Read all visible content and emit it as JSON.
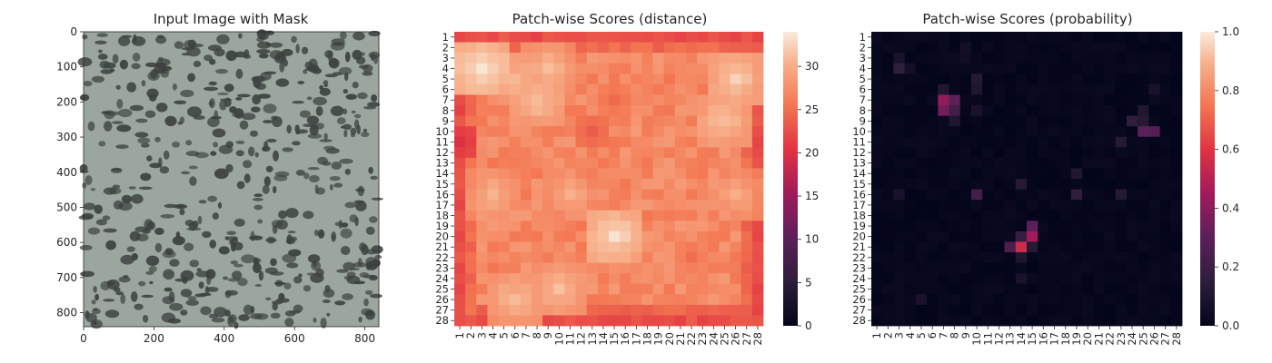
{
  "panels": {
    "image": {
      "title": "Input Image with Mask",
      "x_ticks": [
        "0",
        "200",
        "400",
        "600",
        "800"
      ],
      "y_ticks": [
        "0",
        "100",
        "200",
        "300",
        "400",
        "500",
        "600",
        "700",
        "800"
      ],
      "x_range": [
        0,
        840
      ],
      "y_range": [
        0,
        840
      ],
      "colors": {
        "background": "#9aa69e",
        "spots": "#3d4240"
      }
    }
  },
  "chart_data": [
    {
      "type": "heatmap",
      "title": "Patch-wise Scores (distance)",
      "rows": 28,
      "cols": 28,
      "x_tick_labels": [
        "1",
        "2",
        "3",
        "4",
        "5",
        "6",
        "7",
        "8",
        "9",
        "10",
        "11",
        "12",
        "13",
        "14",
        "15",
        "16",
        "17",
        "18",
        "19",
        "20",
        "21",
        "22",
        "23",
        "24",
        "25",
        "26",
        "27",
        "28"
      ],
      "y_tick_labels": [
        "1",
        "2",
        "3",
        "4",
        "5",
        "6",
        "7",
        "8",
        "9",
        "10",
        "11",
        "12",
        "13",
        "14",
        "15",
        "16",
        "17",
        "18",
        "19",
        "20",
        "21",
        "22",
        "23",
        "24",
        "25",
        "26",
        "27",
        "28"
      ],
      "colorbar": {
        "range": [
          0,
          34
        ],
        "ticks": [
          "0",
          "5",
          "10",
          "15",
          "20",
          "25",
          "30"
        ]
      },
      "base_value": 27,
      "border_value": 22.5,
      "bright_spots": [
        {
          "row": 4,
          "col": 3,
          "value": 33.5
        },
        {
          "row": 5,
          "col": 6,
          "value": 31
        },
        {
          "row": 4,
          "col": 9,
          "value": 31
        },
        {
          "row": 7,
          "col": 8,
          "value": 31.5
        },
        {
          "row": 5,
          "col": 26,
          "value": 32
        },
        {
          "row": 9,
          "col": 25,
          "value": 31.5
        },
        {
          "row": 16,
          "col": 4,
          "value": 30.5
        },
        {
          "row": 16,
          "col": 11,
          "value": 30
        },
        {
          "row": 20,
          "col": 15,
          "value": 33
        },
        {
          "row": 25,
          "col": 10,
          "value": 31
        },
        {
          "row": 26,
          "col": 6,
          "value": 31
        },
        {
          "row": 16,
          "col": 26,
          "value": 30
        }
      ],
      "dark_spots": [
        {
          "row": 11,
          "col": 1,
          "value": 20
        },
        {
          "row": 10,
          "col": 13,
          "value": 23.5
        },
        {
          "row": 7,
          "col": 15,
          "value": 24.5
        },
        {
          "row": 22,
          "col": 22,
          "value": 25
        }
      ]
    },
    {
      "type": "heatmap",
      "title": "Patch-wise Scores (probability)",
      "rows": 28,
      "cols": 28,
      "x_tick_labels": [
        "1",
        "2",
        "3",
        "4",
        "5",
        "6",
        "7",
        "8",
        "9",
        "10",
        "11",
        "12",
        "13",
        "14",
        "15",
        "16",
        "17",
        "18",
        "19",
        "20",
        "21",
        "22",
        "23",
        "24",
        "25",
        "26",
        "27",
        "28"
      ],
      "y_tick_labels": [
        "1",
        "2",
        "3",
        "4",
        "5",
        "6",
        "7",
        "8",
        "9",
        "10",
        "11",
        "12",
        "13",
        "14",
        "15",
        "16",
        "17",
        "18",
        "19",
        "20",
        "21",
        "22",
        "23",
        "24",
        "25",
        "26",
        "27",
        "28"
      ],
      "colorbar": {
        "range": [
          0,
          1.0
        ],
        "ticks": [
          "0.0",
          "0.2",
          "0.4",
          "0.6",
          "0.8",
          "1.0"
        ]
      },
      "base_value": 0,
      "cells": [
        {
          "row": 4,
          "col": 3,
          "value": 0.15
        },
        {
          "row": 3,
          "col": 3,
          "value": 0.08
        },
        {
          "row": 4,
          "col": 4,
          "value": 0.06
        },
        {
          "row": 7,
          "col": 7,
          "value": 0.42
        },
        {
          "row": 7,
          "col": 8,
          "value": 0.3
        },
        {
          "row": 8,
          "col": 7,
          "value": 0.35
        },
        {
          "row": 8,
          "col": 8,
          "value": 0.22
        },
        {
          "row": 6,
          "col": 7,
          "value": 0.1
        },
        {
          "row": 9,
          "col": 8,
          "value": 0.1
        },
        {
          "row": 5,
          "col": 10,
          "value": 0.12
        },
        {
          "row": 6,
          "col": 10,
          "value": 0.1
        },
        {
          "row": 8,
          "col": 10,
          "value": 0.08
        },
        {
          "row": 2,
          "col": 9,
          "value": 0.06
        },
        {
          "row": 3,
          "col": 9,
          "value": 0.05
        },
        {
          "row": 10,
          "col": 25,
          "value": 0.3
        },
        {
          "row": 10,
          "col": 26,
          "value": 0.28
        },
        {
          "row": 9,
          "col": 24,
          "value": 0.15
        },
        {
          "row": 9,
          "col": 25,
          "value": 0.12
        },
        {
          "row": 11,
          "col": 23,
          "value": 0.12
        },
        {
          "row": 8,
          "col": 25,
          "value": 0.1
        },
        {
          "row": 6,
          "col": 26,
          "value": 0.08
        },
        {
          "row": 16,
          "col": 10,
          "value": 0.22
        },
        {
          "row": 15,
          "col": 14,
          "value": 0.12
        },
        {
          "row": 16,
          "col": 19,
          "value": 0.15
        },
        {
          "row": 14,
          "col": 19,
          "value": 0.1
        },
        {
          "row": 16,
          "col": 23,
          "value": 0.12
        },
        {
          "row": 20,
          "col": 15,
          "value": 0.45
        },
        {
          "row": 19,
          "col": 15,
          "value": 0.3
        },
        {
          "row": 21,
          "col": 14,
          "value": 0.55
        },
        {
          "row": 21,
          "col": 13,
          "value": 0.25
        },
        {
          "row": 20,
          "col": 14,
          "value": 0.18
        },
        {
          "row": 21,
          "col": 15,
          "value": 0.12
        },
        {
          "row": 22,
          "col": 14,
          "value": 0.1
        },
        {
          "row": 24,
          "col": 14,
          "value": 0.08
        },
        {
          "row": 26,
          "col": 5,
          "value": 0.08
        },
        {
          "row": 16,
          "col": 3,
          "value": 0.08
        }
      ]
    }
  ]
}
